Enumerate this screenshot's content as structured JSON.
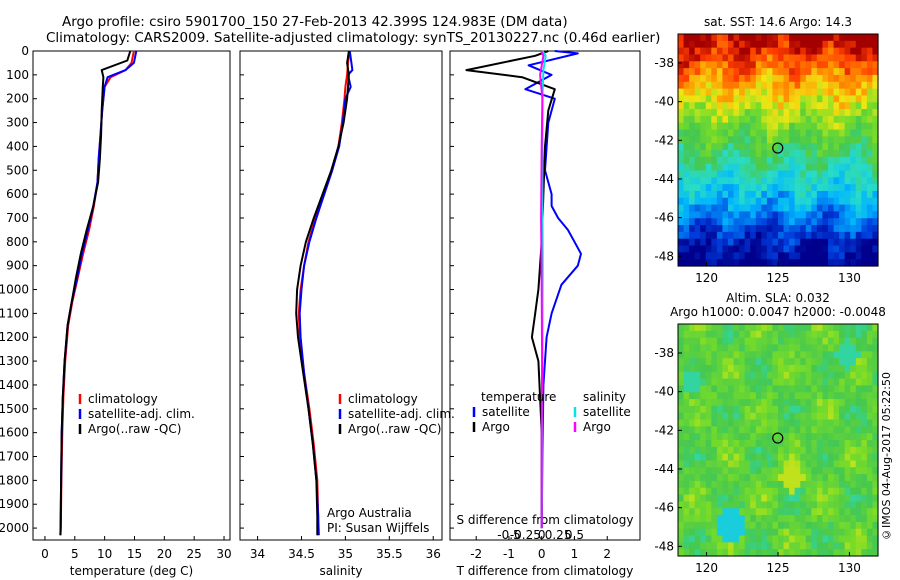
{
  "header": {
    "line1": "Argo profile: csiro 5901700_150 27-Feb-2013 42.399S 124.983E (DM data)",
    "line2": "Climatology: CARS2009. Satellite-adjusted climatology: synTS_20130227.nc (0.46d earlier)"
  },
  "credit": "©IMOS 04-Aug-2017 05:22:50",
  "colors": {
    "climatology": "#ff0000",
    "satellite_adj": "#0000ff",
    "argo": "#000000",
    "salinity_satellite": "#00e5e5",
    "salinity_argo": "#ff00ff"
  },
  "chart_data": [
    {
      "type": "line",
      "id": "temperature",
      "xlabel": "temperature (deg C)",
      "ylabel": "",
      "xlim": [
        -2,
        31
      ],
      "ylim": [
        2050,
        0
      ],
      "xticks": [
        0,
        5,
        10,
        15,
        20,
        25,
        30
      ],
      "yticks": [
        0,
        100,
        200,
        300,
        400,
        500,
        600,
        700,
        800,
        900,
        1000,
        1100,
        1200,
        1300,
        1400,
        1500,
        1600,
        1700,
        1800,
        1900,
        2000
      ],
      "legend": [
        "climatology",
        "satellite-adj. clim.",
        "Argo(..raw -QC)"
      ],
      "legend_placement": "lower-right",
      "series": [
        {
          "name": "climatology",
          "color": "#ff0000",
          "x": [
            14.9,
            14.5,
            13.5,
            11.0,
            10.0,
            9.6,
            9.3,
            9.0,
            8.8,
            8.2,
            7.4,
            6.4,
            5.5,
            4.6,
            3.9,
            3.4,
            3.1,
            2.9,
            2.75,
            2.65,
            2.6
          ],
          "y": [
            0,
            50,
            80,
            110,
            150,
            250,
            350,
            450,
            550,
            650,
            750,
            850,
            950,
            1050,
            1150,
            1300,
            1450,
            1600,
            1800,
            2000,
            2030
          ]
        },
        {
          "name": "satellite-adj. clim.",
          "color": "#0000ff",
          "x": [
            15.3,
            14.9,
            13.5,
            10.5,
            10.0,
            9.6,
            9.3,
            9.0,
            8.8,
            8.1,
            7.2,
            6.2,
            5.4,
            4.5,
            3.8,
            3.3,
            3.0,
            2.8,
            2.7,
            2.62,
            2.6
          ],
          "y": [
            0,
            50,
            80,
            110,
            150,
            250,
            350,
            450,
            550,
            650,
            750,
            850,
            950,
            1050,
            1150,
            1300,
            1450,
            1600,
            1800,
            2000,
            2030
          ]
        },
        {
          "name": "Argo(..raw -QC)",
          "color": "#000000",
          "x": [
            14.3,
            13.8,
            9.5,
            9.8,
            9.7,
            9.5,
            9.4,
            9.2,
            8.9,
            8.1,
            7.0,
            6.0,
            5.2,
            4.5,
            3.8,
            3.3,
            3.0,
            2.8,
            2.7,
            2.62,
            2.58
          ],
          "y": [
            0,
            40,
            80,
            110,
            150,
            250,
            350,
            450,
            550,
            650,
            750,
            850,
            950,
            1050,
            1150,
            1300,
            1450,
            1600,
            1800,
            2000,
            2030
          ]
        }
      ]
    },
    {
      "type": "line",
      "id": "salinity",
      "xlabel": "salinity",
      "xlim": [
        33.8,
        36.1
      ],
      "ylim": [
        2050,
        0
      ],
      "xticks": [
        34,
        34.5,
        35,
        35.5,
        36
      ],
      "legend": [
        "climatology",
        "satellite-adj. clim.",
        "Argo(..raw -QC)"
      ],
      "legend_placement": "lower-right",
      "annotation": [
        "Argo Australia",
        "PI: Susan Wijffels"
      ],
      "series": [
        {
          "name": "climatology",
          "color": "#ff0000",
          "x": [
            35.05,
            35.03,
            35.02,
            35.0,
            34.99,
            34.96,
            34.92,
            34.85,
            34.76,
            34.66,
            34.58,
            34.53,
            34.49,
            34.47,
            34.48,
            34.53,
            34.59,
            34.64,
            34.68,
            34.69,
            34.7
          ],
          "y": [
            0,
            50,
            100,
            150,
            200,
            300,
            400,
            500,
            600,
            700,
            800,
            900,
            1000,
            1100,
            1200,
            1350,
            1500,
            1650,
            1800,
            1950,
            2030
          ]
        },
        {
          "name": "satellite-adj. clim.",
          "color": "#0000ff",
          "x": [
            35.05,
            35.08,
            35.03,
            35.06,
            35.0,
            34.97,
            34.93,
            34.85,
            34.76,
            34.67,
            34.59,
            34.53,
            34.5,
            34.48,
            34.49,
            34.53,
            34.58,
            34.63,
            34.67,
            34.69,
            34.69
          ],
          "y": [
            0,
            80,
            100,
            150,
            200,
            300,
            400,
            500,
            600,
            700,
            800,
            900,
            1000,
            1100,
            1200,
            1350,
            1500,
            1650,
            1800,
            1950,
            2030
          ]
        },
        {
          "name": "Argo(..raw -QC)",
          "color": "#000000",
          "x": [
            35.04,
            35.02,
            35.04,
            35.03,
            35.02,
            34.98,
            34.92,
            34.84,
            34.74,
            34.64,
            34.55,
            34.49,
            34.45,
            34.44,
            34.46,
            34.52,
            34.58,
            34.63,
            34.67,
            34.68,
            34.68
          ],
          "y": [
            0,
            50,
            100,
            150,
            200,
            300,
            400,
            500,
            600,
            700,
            800,
            900,
            1000,
            1100,
            1200,
            1350,
            1500,
            1650,
            1800,
            1950,
            2030
          ]
        }
      ]
    },
    {
      "type": "line",
      "id": "difference",
      "xlabel": "T difference from climatology",
      "top_label": "S difference from climatology",
      "t_xlim": [
        -2.8,
        3.0
      ],
      "t_xticks": [
        -2,
        -1,
        0,
        1,
        2
      ],
      "s_xticks": [
        -0.5,
        -0.25,
        0,
        0.25,
        0.5
      ],
      "s_tick_labels": [
        "-0.5",
        "-0.25",
        "0",
        "0.25",
        "0.5"
      ],
      "ylim": [
        2050,
        0
      ],
      "legend_temperature_title": "temperature",
      "legend_salinity_title": "salinity",
      "legend_temperature": [
        "satellite",
        "Argo"
      ],
      "legend_salinity": [
        "satellite",
        "Argo"
      ],
      "series": [
        {
          "name": "T satellite",
          "color": "#0000ff",
          "x": [
            0.4,
            1.1,
            -0.4,
            0.3,
            -0.5,
            0.4,
            0.2,
            0.1,
            0.3,
            0.3,
            0.5,
            0.8,
            1.0,
            1.2,
            1.1,
            0.6,
            0.3,
            0.15,
            0.05,
            0.02,
            0.0
          ],
          "y": [
            0,
            10,
            60,
            100,
            160,
            200,
            300,
            500,
            600,
            650,
            700,
            750,
            800,
            850,
            900,
            980,
            1100,
            1200,
            1400,
            1700,
            2000
          ]
        },
        {
          "name": "T Argo",
          "color": "#000000",
          "x": [
            0.2,
            -0.2,
            -2.3,
            -0.6,
            0.4,
            0.2,
            0.1,
            0.05,
            0.0,
            -0.1,
            -0.2,
            -0.3,
            -0.1,
            0.0,
            0.0
          ],
          "y": [
            0,
            20,
            80,
            110,
            160,
            250,
            400,
            600,
            800,
            1000,
            1100,
            1200,
            1300,
            1600,
            2000
          ]
        },
        {
          "name": "S satellite",
          "color": "#00e5e5",
          "x": [
            0.02,
            0.12,
            0.05,
            0.02,
            0.02,
            0.02,
            0.03,
            0.02,
            0.01,
            0.01,
            0.0
          ],
          "y": [
            0,
            20,
            80,
            200,
            400,
            600,
            900,
            1200,
            1500,
            1800,
            2000
          ]
        },
        {
          "name": "S Argo",
          "color": "#ff00ff",
          "x": [
            -0.02,
            0.05,
            -0.05,
            0.02,
            0.0,
            -0.02,
            0.0,
            0.01,
            0.0,
            0.0,
            0.0
          ],
          "y": [
            0,
            20,
            100,
            200,
            400,
            700,
            1000,
            1300,
            1600,
            1800,
            2000
          ]
        }
      ]
    },
    {
      "type": "heatmap",
      "id": "sst_map",
      "title": "sat. SST: 14.6 Argo: 14.3",
      "xlim": [
        118,
        132
      ],
      "ylim": [
        -48.5,
        -36.5
      ],
      "xticks": [
        120,
        125,
        130
      ],
      "yticks": [
        -38,
        -40,
        -42,
        -44,
        -46,
        -48
      ],
      "marker": {
        "lon": 124.983,
        "lat": -42.399
      }
    },
    {
      "type": "heatmap",
      "id": "sla_map",
      "title_line1": "Altim. SLA: 0.032",
      "title_line2": "Argo h1000: 0.0047 h2000: -0.0048",
      "xlim": [
        118,
        132
      ],
      "ylim": [
        -48.5,
        -36.5
      ],
      "xticks": [
        120,
        125,
        130
      ],
      "yticks": [
        -38,
        -40,
        -42,
        -44,
        -46,
        -48
      ],
      "marker": {
        "lon": 124.983,
        "lat": -42.399
      }
    }
  ]
}
